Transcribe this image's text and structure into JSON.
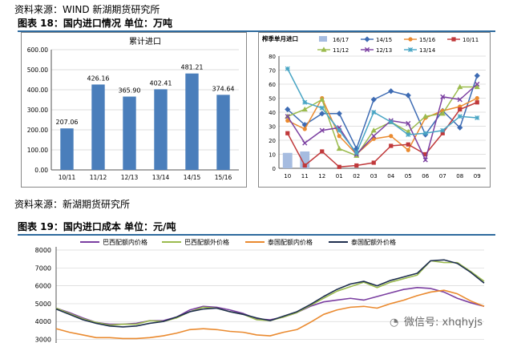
{
  "source_top": "资料来源：WIND 新湖期货研究所",
  "fig18_title": "图表 18：国内进口情况  单位：万吨",
  "source_mid": "资料来源：新湖期货研究所",
  "fig19_title": "图表 19：国内进口成本  单位：元/吨",
  "watermark": "微信号: xhqhyjs",
  "colors": {
    "rule": "#2e6a9e",
    "bar": "#4a7ebb"
  },
  "chart_data": [
    {
      "type": "bar",
      "title": "累计进口",
      "categories": [
        "10/11",
        "11/12",
        "12/13",
        "13/14",
        "14/15",
        "15/16"
      ],
      "values": [
        207.06,
        426.16,
        365.9,
        402.41,
        481.21,
        374.64
      ],
      "value_labels": [
        "207.06",
        "426.16",
        "365.90",
        "402.41",
        "481.21",
        "374.64"
      ],
      "yticks": [
        "0.00",
        "100.00",
        "200.00",
        "300.00",
        "400.00",
        "500.00",
        "600.00"
      ],
      "ylim": [
        0,
        600
      ],
      "grid": true,
      "color": "#4a7ebb"
    },
    {
      "type": "line",
      "title": "榨季单月进口",
      "categories": [
        "10",
        "11",
        "12",
        "01",
        "02",
        "03",
        "04",
        "05",
        "06",
        "07",
        "08",
        "09"
      ],
      "yticks": [
        "0",
        "10",
        "20",
        "30",
        "40",
        "50",
        "60",
        "70",
        "80"
      ],
      "ylim": [
        0,
        80
      ],
      "grid": true,
      "legend_position": "top",
      "bar_series": {
        "name": "16/17",
        "color": "#a6bce0",
        "values": [
          11,
          12
        ]
      },
      "series": [
        {
          "name": "14/15",
          "color": "#3d6bb3",
          "marker": "diamond",
          "values": [
            42,
            31,
            39,
            39,
            14,
            49,
            55,
            52,
            24,
            41,
            29,
            66
          ]
        },
        {
          "name": "15/16",
          "color": "#ea8a2f",
          "marker": "circle",
          "values": [
            34,
            28,
            50,
            23,
            10,
            21,
            23,
            13,
            36,
            41,
            44,
            50
          ]
        },
        {
          "name": "10/11",
          "color": "#c0393b",
          "marker": "square",
          "values": [
            25,
            2,
            12,
            1,
            2,
            4,
            16,
            17,
            10,
            25,
            42,
            47
          ]
        },
        {
          "name": "11/12",
          "color": "#9bbb4e",
          "marker": "triangle",
          "values": [
            37,
            42,
            49,
            14,
            9,
            27,
            33,
            26,
            37,
            39,
            58,
            58
          ]
        },
        {
          "name": "12/13",
          "color": "#7b3fa1",
          "marker": "x",
          "values": [
            37,
            18,
            27,
            29,
            10,
            23,
            34,
            32,
            6,
            51,
            49,
            60
          ]
        },
        {
          "name": "13/14",
          "color": "#48a5c4",
          "marker": "star",
          "values": [
            71,
            47,
            43,
            27,
            11,
            40,
            33,
            24,
            25,
            27,
            37,
            36
          ]
        }
      ]
    },
    {
      "type": "line",
      "legend_position": "top",
      "yticks": [
        "3000",
        "4000",
        "5000",
        "6000",
        "7000",
        "8000"
      ],
      "ylim": [
        2800,
        8000
      ],
      "grid": true,
      "series": [
        {
          "name": "巴西配额内价格",
          "color": "#7b3fa1",
          "values": [
            4750,
            4500,
            4200,
            3950,
            3850,
            3850,
            3900,
            4050,
            4050,
            4250,
            4650,
            4850,
            4800,
            4650,
            4450,
            4150,
            4100,
            4250,
            4500,
            4850,
            5100,
            5200,
            5300,
            5200,
            5400,
            5600,
            5800,
            5900,
            5850,
            5650,
            5300,
            5050,
            4850
          ]
        },
        {
          "name": "巴西配额外价格",
          "color": "#9bbb4e",
          "values": [
            4750,
            4450,
            4150,
            3950,
            3800,
            3850,
            3850,
            4050,
            4000,
            4200,
            4550,
            4800,
            4750,
            4550,
            4400,
            4100,
            4050,
            4250,
            4500,
            4900,
            5300,
            5700,
            5950,
            6200,
            5900,
            6200,
            6400,
            6600,
            7400,
            7300,
            7300,
            6800,
            6250
          ]
        },
        {
          "name": "泰国配额内价格",
          "color": "#ea8a2f",
          "values": [
            3600,
            3400,
            3250,
            3100,
            3100,
            3050,
            3050,
            3100,
            3200,
            3350,
            3550,
            3600,
            3550,
            3450,
            3400,
            3250,
            3200,
            3400,
            3550,
            3950,
            4400,
            4650,
            4800,
            4850,
            4750,
            5000,
            5200,
            5450,
            5650,
            5750,
            5550,
            5150,
            4850
          ]
        },
        {
          "name": "泰国配额外价格",
          "color": "#1f2f4f",
          "values": [
            4700,
            4400,
            4100,
            3900,
            3750,
            3700,
            3750,
            3900,
            4000,
            4250,
            4550,
            4700,
            4750,
            4550,
            4400,
            4200,
            4050,
            4300,
            4550,
            4950,
            5400,
            5800,
            6100,
            6250,
            6000,
            6300,
            6500,
            6700,
            7400,
            7450,
            7250,
            6750,
            6150
          ]
        }
      ]
    }
  ]
}
